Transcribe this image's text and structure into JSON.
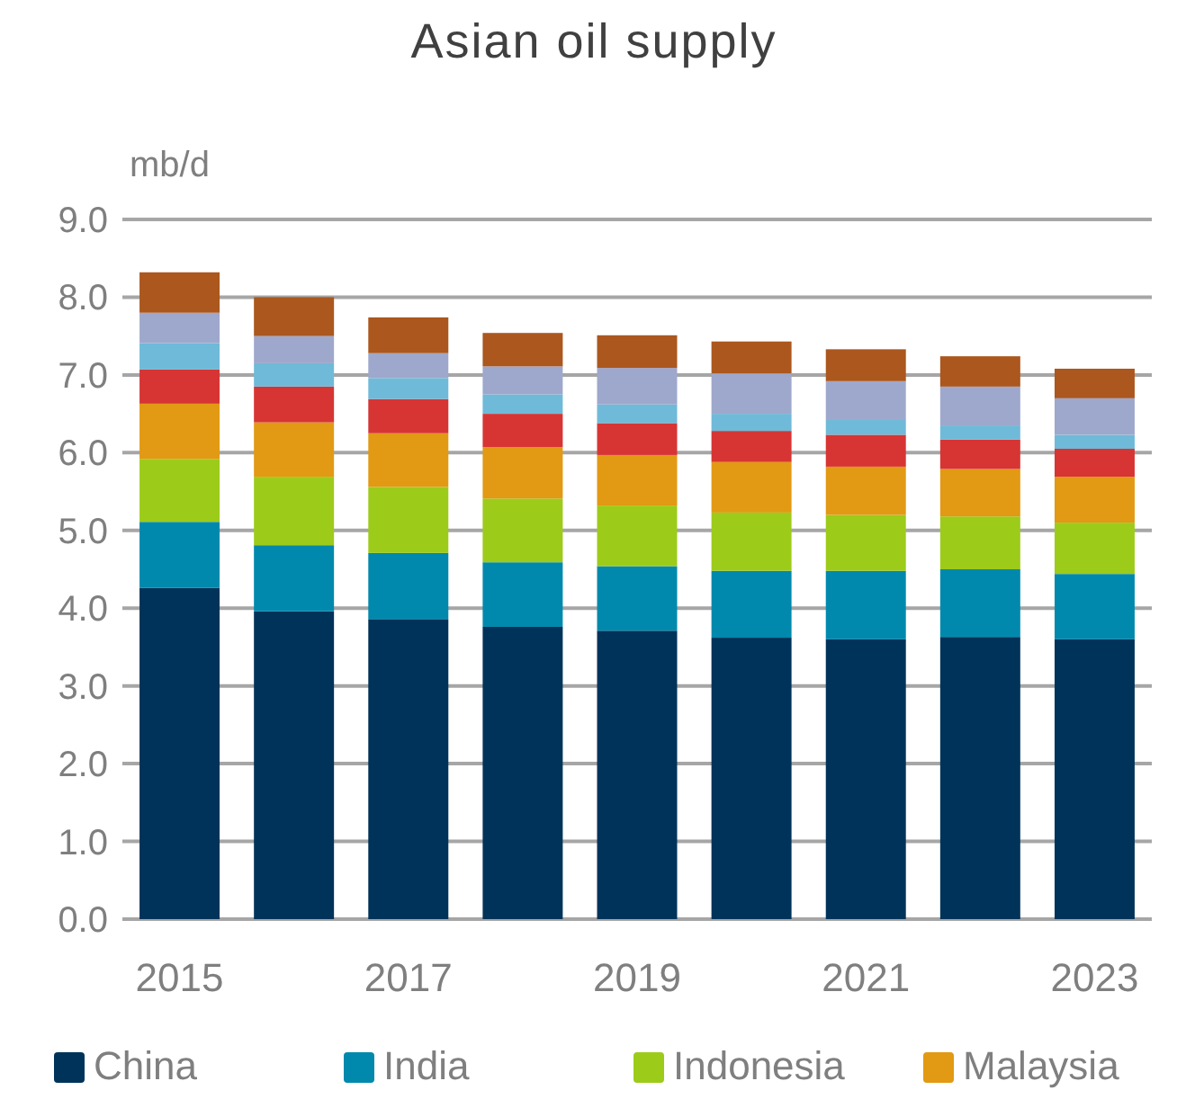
{
  "chart_data": {
    "type": "bar",
    "title": "Asian oil supply",
    "ylabel": "mb/d",
    "stacked": true,
    "grid": "y",
    "legend": "bottom",
    "categories": [
      "2015",
      null,
      "2017",
      null,
      "2019",
      null,
      "2021",
      null,
      "2023"
    ],
    "ylim": [
      0,
      9
    ],
    "yticks": [
      {
        "value": 0,
        "label": "0.0"
      },
      {
        "value": 1,
        "label": "1.0"
      },
      {
        "value": 2,
        "label": "2.0"
      },
      {
        "value": 3,
        "label": "3.0"
      },
      {
        "value": 4,
        "label": "4.0"
      },
      {
        "value": 5,
        "label": "5.0"
      },
      {
        "value": 6,
        "label": "6.0"
      },
      {
        "value": 7,
        "label": "7.0"
      },
      {
        "value": 8,
        "label": "8.0"
      },
      {
        "value": 9,
        "label": "9.0"
      }
    ],
    "series": [
      {
        "name": "China",
        "color": "#003359",
        "values": [
          4.26,
          3.96,
          3.86,
          3.76,
          3.71,
          3.62,
          3.6,
          3.63,
          3.6
        ]
      },
      {
        "name": "India",
        "color": "#0089ad",
        "values": [
          0.85,
          0.85,
          0.85,
          0.83,
          0.83,
          0.86,
          0.88,
          0.87,
          0.84
        ]
      },
      {
        "name": "Indonesia",
        "color": "#9dcb1a",
        "values": [
          0.81,
          0.88,
          0.85,
          0.82,
          0.78,
          0.75,
          0.72,
          0.68,
          0.66
        ]
      },
      {
        "name": "Malaysia",
        "color": "#e29913",
        "values": [
          0.71,
          0.7,
          0.69,
          0.66,
          0.65,
          0.65,
          0.62,
          0.61,
          0.59
        ]
      },
      {
        "color": "#d63534",
        "values": [
          0.44,
          0.46,
          0.44,
          0.43,
          0.41,
          0.4,
          0.41,
          0.38,
          0.36
        ]
      },
      {
        "color": "#6fbad8",
        "values": [
          0.34,
          0.3,
          0.27,
          0.25,
          0.24,
          0.22,
          0.19,
          0.18,
          0.18
        ]
      },
      {
        "color": "#9ea8cc",
        "values": [
          0.39,
          0.35,
          0.32,
          0.36,
          0.47,
          0.52,
          0.5,
          0.5,
          0.47
        ]
      },
      {
        "color": "#ab571e",
        "values": [
          0.52,
          0.5,
          0.46,
          0.43,
          0.42,
          0.41,
          0.41,
          0.39,
          0.38
        ]
      }
    ]
  }
}
